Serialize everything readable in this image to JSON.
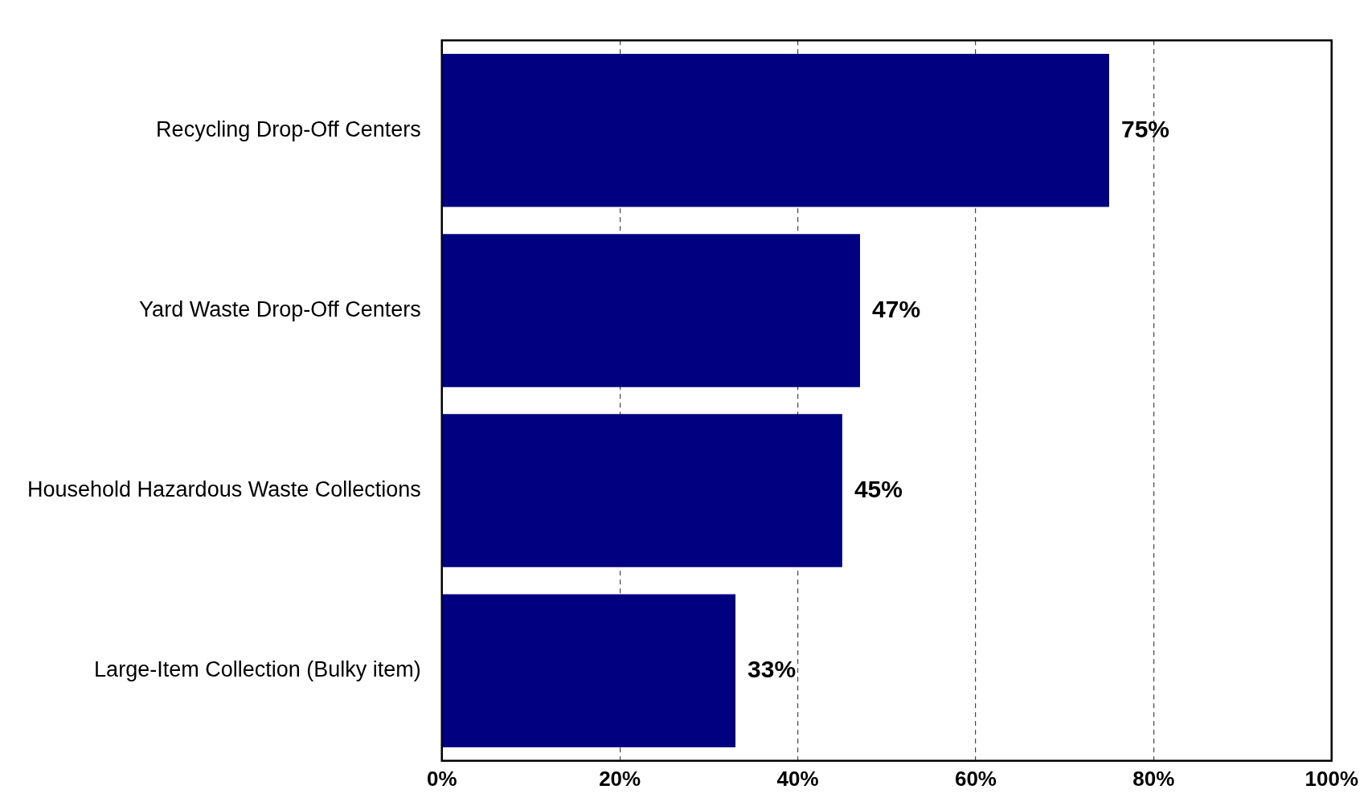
{
  "chart_data": {
    "type": "bar",
    "orientation": "horizontal",
    "categories": [
      "Recycling Drop-Off Centers",
      "Yard Waste Drop-Off Centers",
      "Household Hazardous Waste Collections",
      "Large-Item Collection (Bulky item)"
    ],
    "values": [
      75,
      47,
      45,
      33
    ],
    "value_labels": [
      "75%",
      "47%",
      "45%",
      "33%"
    ],
    "color": "#000080",
    "xlim": [
      0,
      100
    ],
    "xticks": [
      {
        "value": 0,
        "label": "0%"
      },
      {
        "value": 20,
        "label": "20%"
      },
      {
        "value": 40,
        "label": "40%"
      },
      {
        "value": 60,
        "label": "60%"
      },
      {
        "value": 80,
        "label": "80%"
      },
      {
        "value": 100,
        "label": "100%"
      }
    ],
    "grid": "x",
    "legend": false
  }
}
